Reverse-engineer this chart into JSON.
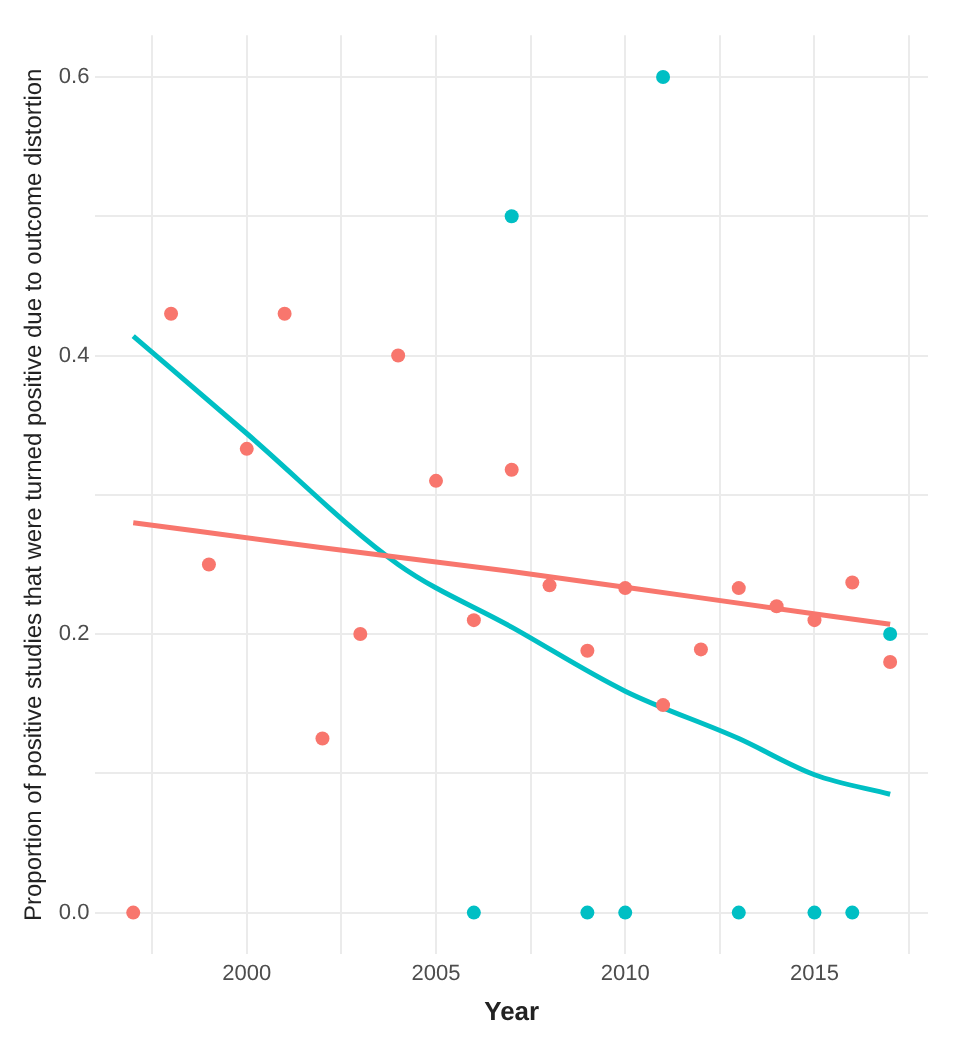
{
  "chart_data": {
    "type": "scatter",
    "xlabel": "Year",
    "ylabel": "Proportion of positive studies that were turned positive due to outcome distortion",
    "xlim": [
      1996,
      2018
    ],
    "ylim": [
      -0.03,
      0.63
    ],
    "xticks": [
      {
        "value": 1997.5,
        "label": null
      },
      2000,
      {
        "value": 2002.5,
        "label": null
      },
      2005,
      {
        "value": 2007.5,
        "label": null
      },
      2010,
      {
        "value": 2012.5,
        "label": null
      },
      2015,
      {
        "value": 2017.5,
        "label": null
      }
    ],
    "yticks": [
      {
        "value": 0,
        "label": "0.0"
      },
      {
        "value": 0.1,
        "label": null
      },
      {
        "value": 0.2,
        "label": "0.2"
      },
      {
        "value": 0.3,
        "label": null
      },
      {
        "value": 0.4,
        "label": "0.4"
      },
      {
        "value": 0.5,
        "label": null
      },
      {
        "value": 0.6,
        "label": "0.6"
      }
    ],
    "grid": true,
    "legend": false,
    "marker": "circle",
    "series": [
      {
        "color": "#f8766d",
        "x": [
          1997,
          1998,
          1999,
          2000,
          2001,
          2002,
          2003,
          2004,
          2005,
          2006,
          2007,
          2008,
          2009,
          2010,
          2011,
          2012,
          2013,
          2014,
          2015,
          2016,
          2017
        ],
        "values": [
          0,
          0.43,
          0.25,
          0.333,
          0.43,
          0.125,
          0.2,
          0.4,
          0.31,
          0.21,
          0.318,
          0.235,
          0.188,
          0.233,
          0.149,
          0.189,
          0.233,
          0.22,
          0.21,
          0.237,
          0.18
        ]
      },
      {
        "color": "#00bfc4",
        "x": [
          2006,
          2007,
          2009,
          2010,
          2011,
          2013,
          2015,
          2016,
          2017
        ],
        "values": [
          0,
          0.5,
          0,
          0,
          0.6,
          0,
          0,
          0,
          0.2
        ]
      },
      {
        "type": "line",
        "color": "#f8766d",
        "x": [
          1997,
          2002,
          2007,
          2012,
          2017
        ],
        "values": [
          0.28,
          0.262,
          0.245,
          0.226,
          0.207
        ],
        "marker": "none"
      },
      {
        "type": "line",
        "color": "#00bfc4",
        "x": [
          1997,
          2000,
          2004,
          2007,
          2010,
          2013,
          2015,
          2017
        ],
        "values": [
          0.414,
          0.344,
          0.25,
          0.205,
          0.159,
          0.125,
          0.099,
          0.085
        ],
        "marker": "none"
      }
    ]
  }
}
